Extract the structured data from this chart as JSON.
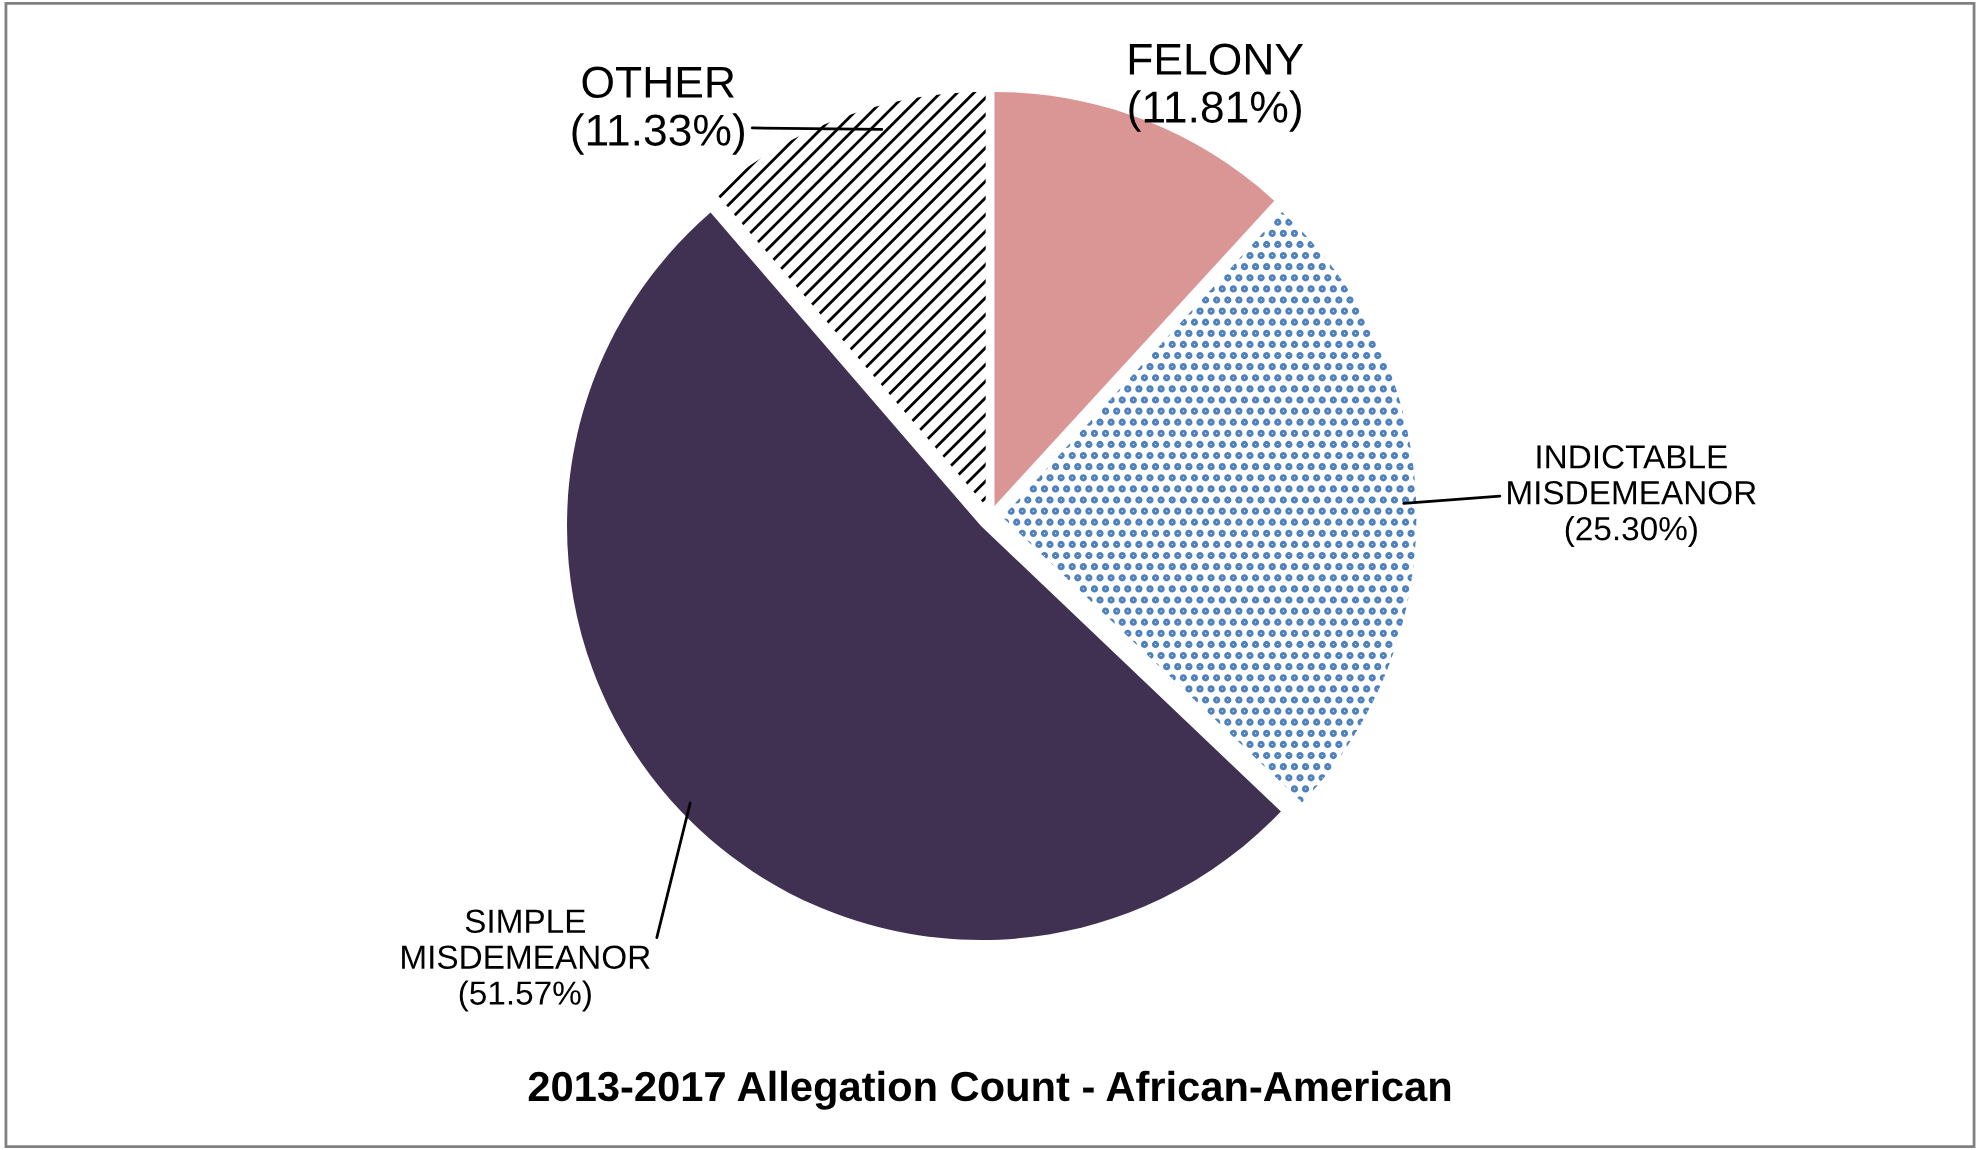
{
  "chart_data": {
    "type": "pie",
    "title": "2013-2017 Allegation Count - African-American",
    "categories": [
      "FELONY",
      "INDICTABLE MISDEMEANOR",
      "SIMPLE MISDEMEANOR",
      "OTHER"
    ],
    "values": [
      11.81,
      25.3,
      51.57,
      11.33
    ],
    "value_labels": [
      "(11.81%)",
      "(25.30%)",
      "(51.57%)",
      "(11.33%)"
    ],
    "colors": [
      "#d99694",
      "#4f81bd",
      "#403152",
      "#000000"
    ],
    "legend": false
  }
}
